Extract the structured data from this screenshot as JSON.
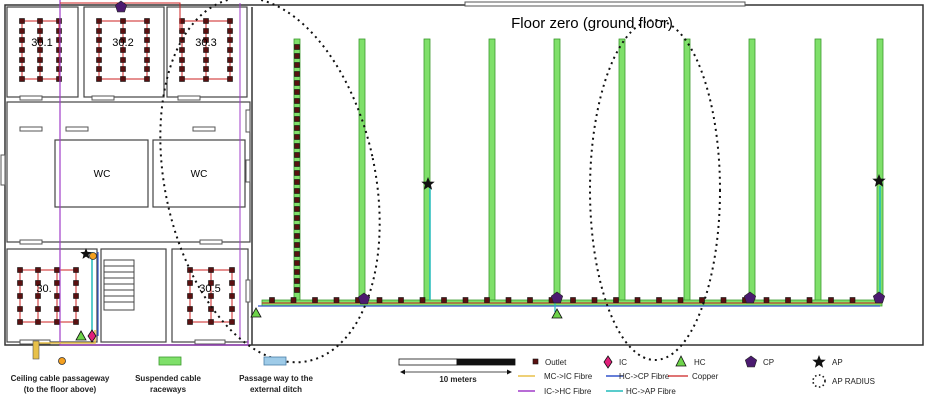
{
  "floor_title": "Floor zero (ground floor)",
  "rooms": {
    "r301": "30.1",
    "r302": "30.2",
    "r303": "30.3",
    "r304": "30.",
    "r305": "30.5",
    "wc1": "WC",
    "wc2": "WC"
  },
  "legend": {
    "ceiling_passage": [
      "Ceiling cable passageway",
      "(to the floor above)"
    ],
    "raceways": [
      "Suspended cable",
      "raceways"
    ],
    "ditch": [
      "Passage way to the",
      "external ditch"
    ],
    "scale": "10 meters",
    "outlet": "Outlet",
    "ic": "IC",
    "hc": "HC",
    "cp": "CP",
    "ap": "AP",
    "ap_radius": "AP RADIUS",
    "mc_ic": "MC->IC Fibre",
    "ic_hc": "IC->HC Fibre",
    "hc_cp": "HC->CP Fibre",
    "hc_ap": "HC->AP Fibre",
    "copper": "Copper"
  },
  "colors": {
    "raceway": "#7fe06a",
    "raceway_stroke": "#3c9a2e",
    "copper": "#cc2222",
    "mc_ic": "#e8c14a",
    "ic_hc": "#a03cc8",
    "hc_cp": "#3355cc",
    "hc_ap": "#22bbbb",
    "ic": "#e0207a",
    "cp": "#4b1a70",
    "ditch": "#9ecbe8"
  }
}
